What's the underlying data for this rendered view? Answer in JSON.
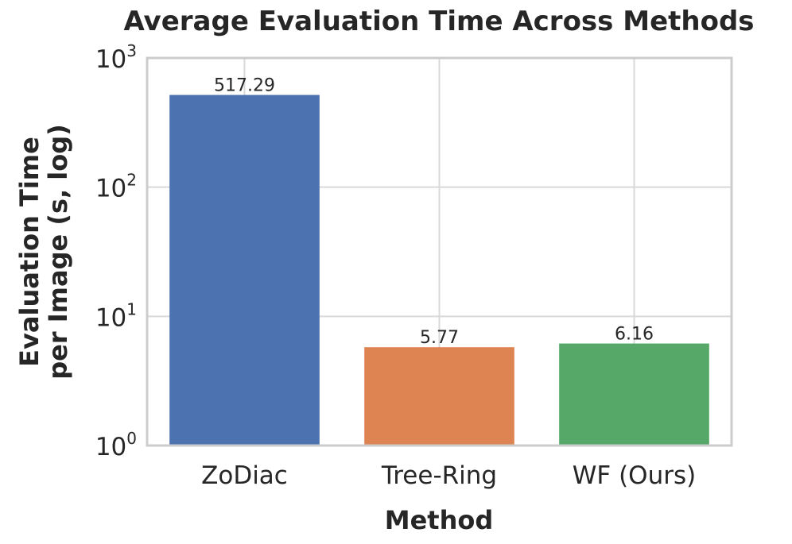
{
  "chart_data": {
    "type": "bar",
    "title": "Average Evaluation Time Across Methods",
    "xlabel": "Method",
    "ylabel_lines": [
      "Evaluation Time",
      "per Image (s, log)"
    ],
    "yscale": "log",
    "ylim": [
      1,
      1000
    ],
    "yticks": [
      {
        "base": "10",
        "exp": "0",
        "value": 1
      },
      {
        "base": "10",
        "exp": "1",
        "value": 10
      },
      {
        "base": "10",
        "exp": "2",
        "value": 100
      },
      {
        "base": "10",
        "exp": "3",
        "value": 1000
      }
    ],
    "categories": [
      "ZoDiac",
      "Tree-Ring",
      "WF (Ours)"
    ],
    "values": [
      517.29,
      5.77,
      6.16
    ],
    "value_labels": [
      "517.29",
      "5.77",
      "6.16"
    ],
    "colors": [
      "#4c72b0",
      "#dd8452",
      "#55a868"
    ],
    "grid": true
  }
}
